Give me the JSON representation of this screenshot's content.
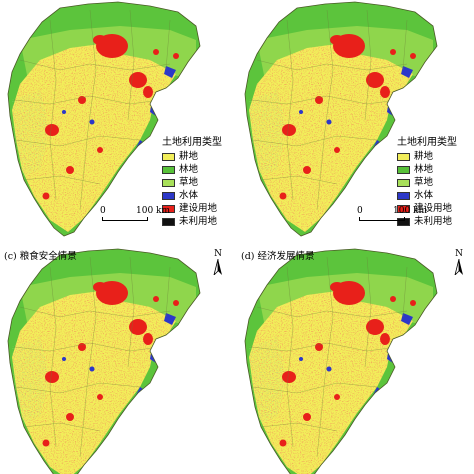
{
  "legend": {
    "title": "土地利用类型",
    "items": [
      {
        "label": "耕地",
        "color": "#f2ee5a"
      },
      {
        "label": "林地",
        "color": "#58c23a"
      },
      {
        "label": "草地",
        "color": "#a8e05a"
      },
      {
        "label": "水体",
        "color": "#2c38c8"
      },
      {
        "label": "建设用地",
        "color": "#e8201a"
      },
      {
        "label": "未利用地",
        "color": "#111111"
      }
    ]
  },
  "scale": {
    "zero": "0",
    "distance": "100 km"
  },
  "panels": {
    "c": {
      "caption": "(c) 粮食安全情景"
    },
    "d": {
      "caption": "(d) 经济发展情景"
    }
  },
  "north_label": "N",
  "colors": {
    "cropland": "#f2ee5a",
    "forest": "#58c23a",
    "grassland": "#a8e05a",
    "water": "#2c38c8",
    "builtup": "#e8201a",
    "boundary": "#6b7f3a"
  }
}
